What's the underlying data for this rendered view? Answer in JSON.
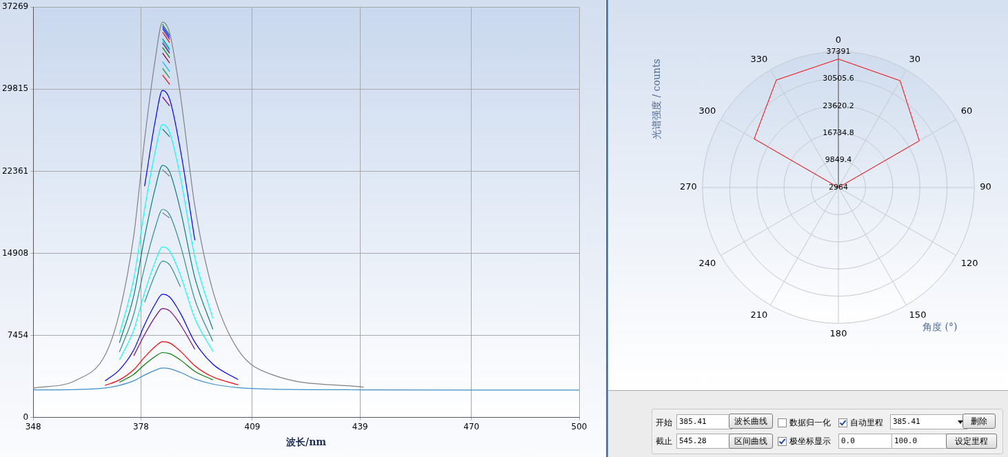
{
  "chart_data": [
    {
      "type": "line",
      "xlabel": "波长/nm",
      "xlim": [
        348,
        500
      ],
      "xticks": [
        348,
        378,
        409,
        439,
        470,
        500
      ],
      "ylim": [
        0,
        37269
      ],
      "yticks": [
        0,
        7454,
        14908,
        22361,
        29815,
        37269
      ],
      "grid": true,
      "legend": false,
      "x": [
        348,
        360,
        368,
        372,
        376,
        379,
        382,
        384,
        386,
        389,
        393,
        398,
        405,
        415,
        440,
        500
      ],
      "series": [
        {
          "color": "#808080",
          "values": [
            2670,
            3400,
            5670,
            9510,
            16530,
            25210,
            32560,
            35900,
            34900,
            29220,
            19200,
            11520,
            6170,
            3840,
            2770,
            null
          ]
        },
        {
          "color": "#008000",
          "values": [
            null,
            null,
            null,
            null,
            null,
            null,
            null,
            35700,
            34700,
            null,
            null,
            null,
            null,
            null,
            null,
            null
          ]
        },
        {
          "color": "#0000ff",
          "values": [
            null,
            null,
            null,
            null,
            null,
            null,
            null,
            35500,
            34510,
            null,
            null,
            null,
            null,
            null,
            null,
            null
          ]
        },
        {
          "color": "#3030ff",
          "values": [
            null,
            null,
            null,
            null,
            null,
            null,
            null,
            35300,
            34320,
            null,
            null,
            null,
            null,
            null,
            null,
            null
          ]
        },
        {
          "color": "#ff0000",
          "values": [
            null,
            null,
            null,
            null,
            null,
            null,
            null,
            35000,
            34030,
            null,
            null,
            null,
            null,
            null,
            null,
            null
          ]
        },
        {
          "color": "#008b8b",
          "values": [
            null,
            null,
            null,
            null,
            null,
            null,
            null,
            34400,
            33440,
            null,
            null,
            null,
            null,
            null,
            null,
            null
          ]
        },
        {
          "color": "#00ced1",
          "values": [
            null,
            null,
            null,
            null,
            null,
            null,
            null,
            34200,
            33250,
            null,
            null,
            null,
            null,
            null,
            null,
            null
          ]
        },
        {
          "color": "#800080",
          "values": [
            null,
            null,
            null,
            null,
            null,
            null,
            null,
            34000,
            33060,
            null,
            null,
            null,
            null,
            null,
            null,
            null
          ]
        },
        {
          "color": "#008000",
          "values": [
            null,
            null,
            null,
            null,
            null,
            null,
            null,
            33600,
            32670,
            null,
            null,
            null,
            null,
            null,
            null,
            null
          ]
        },
        {
          "color": "#800000",
          "values": [
            null,
            null,
            null,
            null,
            null,
            null,
            null,
            33100,
            32180,
            null,
            null,
            null,
            null,
            null,
            null,
            null
          ]
        },
        {
          "color": "#00bfff",
          "values": [
            null,
            null,
            null,
            null,
            null,
            null,
            null,
            32300,
            31410,
            null,
            null,
            null,
            null,
            null,
            null,
            null
          ]
        },
        {
          "color": "#228b22",
          "values": [
            null,
            null,
            null,
            null,
            null,
            null,
            null,
            31700,
            30820,
            null,
            null,
            null,
            null,
            null,
            null,
            null
          ]
        },
        {
          "color": "#ff0000",
          "values": [
            null,
            null,
            null,
            null,
            null,
            null,
            null,
            31100,
            30240,
            null,
            null,
            null,
            null,
            null,
            null,
            null
          ]
        },
        {
          "color": "#0000ff",
          "values": [
            null,
            null,
            null,
            null,
            null,
            21000,
            26980,
            29700,
            28880,
            24260,
            16100,
            null,
            null,
            null,
            null,
            null
          ]
        },
        {
          "color": "#800080",
          "values": [
            null,
            null,
            null,
            null,
            null,
            null,
            null,
            29100,
            28300,
            null,
            null,
            null,
            null,
            null,
            null,
            null
          ]
        },
        {
          "color": "#00ffff",
          "values": [
            null,
            null,
            null,
            7560,
            12620,
            18890,
            24190,
            26600,
            25880,
            21780,
            14550,
            9010,
            null,
            null,
            null,
            null
          ]
        },
        {
          "color": "#008080",
          "values": [
            null,
            null,
            null,
            null,
            null,
            null,
            null,
            26200,
            25490,
            null,
            null,
            null,
            null,
            null,
            null,
            null
          ]
        },
        {
          "color": "#008080",
          "values": [
            null,
            null,
            null,
            6780,
            11070,
            16370,
            20860,
            22900,
            22290,
            18820,
            12700,
            8010,
            null,
            null,
            null,
            null
          ]
        },
        {
          "color": "#708090",
          "values": [
            null,
            null,
            null,
            null,
            null,
            null,
            null,
            22500,
            21900,
            null,
            null,
            null,
            null,
            null,
            null,
            null
          ]
        },
        {
          "color": "#2f8f8f",
          "values": [
            null,
            null,
            null,
            5940,
            9390,
            13650,
            17260,
            18900,
            18410,
            15620,
            10700,
            6930,
            null,
            null,
            null,
            null
          ]
        },
        {
          "color": "#708090",
          "values": [
            null,
            null,
            null,
            null,
            null,
            null,
            null,
            18600,
            18120,
            null,
            null,
            null,
            null,
            null,
            null,
            null
          ]
        },
        {
          "color": "#00ffff",
          "values": [
            null,
            null,
            null,
            5230,
            7960,
            11340,
            14200,
            15500,
            15110,
            12900,
            9000,
            6010,
            null,
            null,
            null,
            null
          ]
        },
        {
          "color": "#2f8f8f",
          "values": [
            null,
            null,
            null,
            null,
            null,
            10460,
            13030,
            14200,
            13850,
            11860,
            null,
            null,
            null,
            null,
            null,
            null
          ]
        },
        {
          "color": "#0000ff",
          "values": [
            null,
            null,
            3330,
            4330,
            6150,
            8420,
            10330,
            11200,
            10940,
            9460,
            6850,
            4850,
            3460,
            null,
            null,
            null
          ]
        },
        {
          "color": "#800080",
          "values": [
            null,
            null,
            null,
            null,
            5610,
            7530,
            9160,
            9900,
            9680,
            8420,
            6200,
            null,
            null,
            null,
            null,
            null
          ]
        },
        {
          "color": "#ff0000",
          "values": [
            null,
            null,
            2920,
            3420,
            4350,
            5490,
            6460,
            6900,
            6770,
            6020,
            4700,
            3690,
            2980,
            null,
            null,
            null
          ]
        },
        {
          "color": "#008000",
          "values": [
            null,
            null,
            null,
            3210,
            3930,
            4810,
            5560,
            5900,
            5800,
            5220,
            4200,
            3420,
            null,
            null,
            null,
            null
          ]
        },
        {
          "color": "#3a8fd0",
          "values": [
            2510,
            2550,
            2690,
            2920,
            3340,
            3860,
            4300,
            4500,
            4440,
            4100,
            3500,
            3040,
            2720,
            2580,
            2520,
            2500
          ]
        }
      ]
    },
    {
      "type": "radar",
      "ylabel": "光谱强度 / counts",
      "xlabel": "角度 (°)",
      "ylim": [
        2964,
        37391
      ],
      "yticks": [
        2964,
        9849.4,
        16734.8,
        23620.2,
        30505.6,
        37391
      ],
      "grid": true,
      "legend": false,
      "categories": [
        "0",
        "30",
        "60",
        "90",
        "120",
        "150",
        "180",
        "210",
        "240",
        "270",
        "300",
        "330"
      ],
      "series": [
        {
          "color": "#ff0000",
          "values": [
            35500,
            34200,
            26600,
            2964,
            2964,
            2964,
            2964,
            2964,
            2964,
            2964,
            27600,
            34400
          ]
        }
      ]
    },
    {
      "type": "other",
      "annotations": [
        "开始",
        "385.41",
        "波长曲线",
        "数据归一化",
        "自动里程",
        "385.41",
        "删除",
        "截止",
        "545.28",
        "区间曲线",
        "极坐标显示",
        "0.0",
        "100.0",
        "设定里程"
      ]
    }
  ]
}
